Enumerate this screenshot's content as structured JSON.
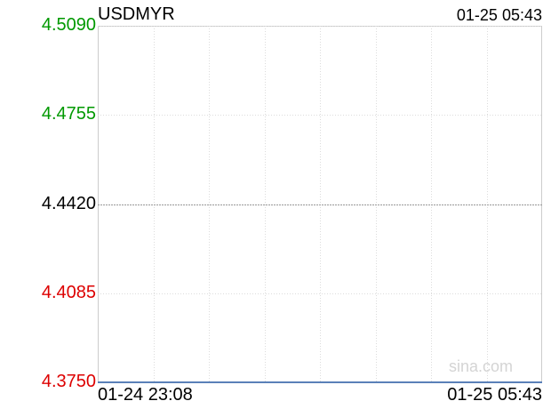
{
  "chart_data": {
    "type": "line",
    "title": "USDMYR",
    "timestamp": "01-25 05:43",
    "x_labels": [
      "01-24 23:08",
      "01-25 05:43"
    ],
    "y_ticks": [
      {
        "label": "4.5090",
        "value": 4.509,
        "color": "#009900"
      },
      {
        "label": "4.4755",
        "value": 4.4755,
        "color": "#009900"
      },
      {
        "label": "4.4420",
        "value": 4.442,
        "color": "#000000"
      },
      {
        "label": "4.4085",
        "value": 4.4085,
        "color": "#dd0000"
      },
      {
        "label": "4.3750",
        "value": 4.375,
        "color": "#dd0000"
      }
    ],
    "ylim": [
      4.375,
      4.509
    ],
    "reference_value": 4.442,
    "series": [
      {
        "x": [
          0,
          1
        ],
        "y": [
          4.375,
          4.375
        ],
        "color": "#5a80b8"
      }
    ],
    "grid": true,
    "watermark": "sina.com"
  }
}
